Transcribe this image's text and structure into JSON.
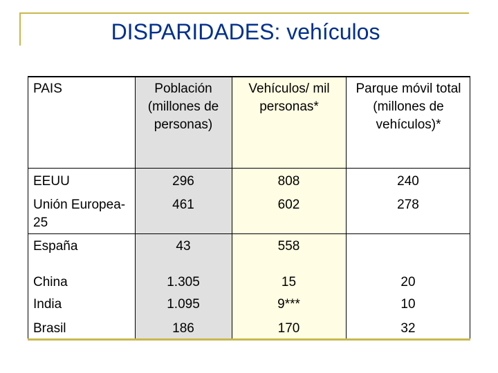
{
  "title": "DISPARIDADES: vehículos",
  "table": {
    "headers": [
      "PAIS",
      "Población (millones de personas)",
      "Vehículos/ mil personas*",
      "Parque móvil total (millones de vehículos)*"
    ],
    "rows": [
      {
        "pais": "EEUU",
        "poblacion": "296",
        "vehiculos": "808",
        "parque": "240"
      },
      {
        "pais": "Unión Europea-25",
        "poblacion": "461",
        "vehiculos": "602",
        "parque": "278"
      },
      {
        "pais": "España",
        "poblacion": "43",
        "vehiculos": "558",
        "parque": ""
      },
      {
        "pais": "China",
        "poblacion": "1.305",
        "vehiculos": "15",
        "parque": "20"
      },
      {
        "pais": "India",
        "poblacion": "1.095",
        "vehiculos": "9***",
        "parque": "10"
      },
      {
        "pais": "Brasil",
        "poblacion": "186",
        "vehiculos": "170",
        "parque": "32"
      }
    ]
  },
  "colors": {
    "title": "#002f8f",
    "accent": "#c8b84c",
    "column_population_bg": "#e0e0e0",
    "column_vehicles_bg": "#fffde3"
  }
}
